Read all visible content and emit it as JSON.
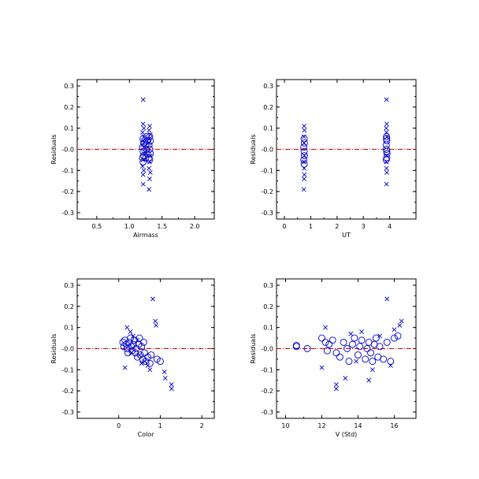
{
  "colors": {
    "points": "#0000cc",
    "zero_line": "#cc0000",
    "frame": "#000000"
  },
  "chart_data": [
    {
      "type": "scatter",
      "xlabel": "Airmass",
      "ylabel": "Residuals",
      "xlim": [
        0.2,
        2.3
      ],
      "ylim": [
        -0.33,
        0.33
      ],
      "xticks": [
        0.5,
        1.0,
        1.5,
        2.0
      ],
      "xtick_labels": [
        "0.5",
        "1.0",
        "1.5",
        "2.0"
      ],
      "yticks": [
        -0.3,
        -0.2,
        -0.1,
        0.0,
        0.1,
        0.2,
        0.3
      ],
      "ytick_labels": [
        "-0.3",
        "-0.2",
        "-0.1",
        "-0.0",
        "0.1",
        "0.2",
        "0.3"
      ],
      "reference_line_y": 0.0,
      "series": [
        {
          "marker": "x",
          "points": [
            [
              1.21,
              0.235
            ],
            [
              1.21,
              0.12
            ],
            [
              1.22,
              0.1
            ],
            [
              1.2,
              0.08
            ],
            [
              1.22,
              0.06
            ],
            [
              1.21,
              0.04
            ],
            [
              1.2,
              0.02
            ],
            [
              1.22,
              -0.02
            ],
            [
              1.21,
              -0.05
            ],
            [
              1.2,
              -0.08
            ],
            [
              1.22,
              -0.1
            ],
            [
              1.21,
              -0.12
            ],
            [
              1.21,
              -0.165
            ],
            [
              1.31,
              0.11
            ],
            [
              1.3,
              0.09
            ],
            [
              1.32,
              0.07
            ],
            [
              1.31,
              0.05
            ],
            [
              1.3,
              0.03
            ],
            [
              1.32,
              -0.03
            ],
            [
              1.31,
              -0.06
            ],
            [
              1.3,
              -0.09
            ],
            [
              1.32,
              -0.11
            ],
            [
              1.31,
              -0.14
            ],
            [
              1.3,
              -0.19
            ]
          ]
        },
        {
          "marker": "o",
          "points": [
            [
              1.21,
              0.05
            ],
            [
              1.22,
              0.03
            ],
            [
              1.2,
              0.01
            ],
            [
              1.21,
              -0.01
            ],
            [
              1.22,
              -0.03
            ],
            [
              1.2,
              -0.04
            ],
            [
              1.21,
              -0.06
            ],
            [
              1.26,
              0.06
            ],
            [
              1.27,
              0.04
            ],
            [
              1.25,
              0.02
            ],
            [
              1.26,
              0.0
            ],
            [
              1.27,
              -0.02
            ],
            [
              1.25,
              -0.04
            ],
            [
              1.31,
              0.06
            ],
            [
              1.32,
              0.04
            ],
            [
              1.3,
              0.02
            ],
            [
              1.31,
              0.0
            ],
            [
              1.32,
              -0.02
            ],
            [
              1.3,
              -0.04
            ],
            [
              1.31,
              -0.05
            ]
          ]
        }
      ]
    },
    {
      "type": "scatter",
      "xlabel": "UT",
      "ylabel": "Residuals",
      "xlim": [
        -0.3,
        5.0
      ],
      "ylim": [
        -0.33,
        0.33
      ],
      "xticks": [
        0,
        1,
        2,
        3,
        4
      ],
      "xtick_labels": [
        "0",
        "1",
        "2",
        "3",
        "4"
      ],
      "yticks": [
        -0.3,
        -0.2,
        -0.1,
        0.0,
        0.1,
        0.2,
        0.3
      ],
      "ytick_labels": [
        "-0.3",
        "-0.2",
        "-0.1",
        "-0.0",
        "0.1",
        "0.2",
        "0.3"
      ],
      "reference_line_y": 0.0,
      "series": [
        {
          "marker": "x",
          "points": [
            [
              0.75,
              0.11
            ],
            [
              0.76,
              0.09
            ],
            [
              0.74,
              0.06
            ],
            [
              0.75,
              0.03
            ],
            [
              0.76,
              -0.03
            ],
            [
              0.74,
              -0.06
            ],
            [
              0.75,
              -0.09
            ],
            [
              0.76,
              -0.12
            ],
            [
              0.75,
              -0.14
            ],
            [
              0.74,
              -0.19
            ],
            [
              3.88,
              0.235
            ],
            [
              3.89,
              0.12
            ],
            [
              3.87,
              0.1
            ],
            [
              3.88,
              0.08
            ],
            [
              3.9,
              0.06
            ],
            [
              3.89,
              -0.03
            ],
            [
              3.87,
              -0.06
            ],
            [
              3.88,
              -0.09
            ],
            [
              3.89,
              -0.11
            ],
            [
              3.88,
              -0.165
            ]
          ]
        },
        {
          "marker": "o",
          "points": [
            [
              0.75,
              0.05
            ],
            [
              0.76,
              0.03
            ],
            [
              0.74,
              0.01
            ],
            [
              0.75,
              -0.01
            ],
            [
              0.76,
              -0.03
            ],
            [
              0.74,
              -0.05
            ],
            [
              0.75,
              -0.07
            ],
            [
              3.88,
              0.06
            ],
            [
              3.89,
              0.04
            ],
            [
              3.87,
              0.02
            ],
            [
              3.88,
              0.0
            ],
            [
              3.9,
              -0.02
            ],
            [
              3.89,
              -0.04
            ],
            [
              3.87,
              -0.05
            ],
            [
              3.88,
              0.05
            ],
            [
              3.89,
              -0.01
            ]
          ]
        }
      ]
    },
    {
      "type": "scatter",
      "xlabel": "Color",
      "ylabel": "Residuals",
      "xlim": [
        -1.0,
        2.3
      ],
      "ylim": [
        -0.33,
        0.33
      ],
      "xticks": [
        0,
        1,
        2
      ],
      "xtick_labels": [
        "0",
        "1",
        "2"
      ],
      "yticks": [
        -0.3,
        -0.2,
        -0.1,
        0.0,
        0.1,
        0.2,
        0.3
      ],
      "ytick_labels": [
        "-0.3",
        "-0.2",
        "-0.1",
        "-0.0",
        "0.1",
        "0.2",
        "0.3"
      ],
      "reference_line_y": 0.0,
      "series": [
        {
          "marker": "x",
          "points": [
            [
              0.82,
              0.235
            ],
            [
              0.88,
              0.13
            ],
            [
              0.9,
              0.11
            ],
            [
              1.1,
              -0.11
            ],
            [
              1.12,
              -0.14
            ],
            [
              1.27,
              -0.17
            ],
            [
              1.27,
              -0.19
            ],
            [
              0.2,
              0.1
            ],
            [
              0.28,
              0.08
            ],
            [
              0.15,
              -0.09
            ],
            [
              0.35,
              0.06
            ],
            [
              0.55,
              -0.07
            ],
            [
              0.62,
              -0.06
            ],
            [
              0.7,
              -0.08
            ],
            [
              0.75,
              -0.1
            ],
            [
              0.45,
              0.04
            ],
            [
              0.5,
              -0.03
            ],
            [
              0.3,
              -0.02
            ]
          ]
        },
        {
          "marker": "o",
          "points": [
            [
              0.1,
              0.03
            ],
            [
              0.12,
              0.01
            ],
            [
              0.15,
              0.04
            ],
            [
              0.18,
              0.02
            ],
            [
              0.2,
              0.0
            ],
            [
              0.22,
              -0.02
            ],
            [
              0.25,
              0.03
            ],
            [
              0.28,
              0.05
            ],
            [
              0.3,
              0.01
            ],
            [
              0.32,
              -0.01
            ],
            [
              0.35,
              0.02
            ],
            [
              0.38,
              0.04
            ],
            [
              0.4,
              -0.02
            ],
            [
              0.42,
              0.0
            ],
            [
              0.45,
              -0.04
            ],
            [
              0.48,
              0.02
            ],
            [
              0.5,
              0.05
            ],
            [
              0.52,
              -0.03
            ],
            [
              0.55,
              0.01
            ],
            [
              0.58,
              -0.05
            ],
            [
              0.6,
              0.03
            ],
            [
              0.62,
              -0.02
            ],
            [
              0.65,
              -0.06
            ],
            [
              0.7,
              -0.04
            ],
            [
              0.75,
              -0.07
            ],
            [
              0.78,
              -0.03
            ],
            [
              0.92,
              -0.05
            ],
            [
              1.0,
              -0.06
            ]
          ]
        }
      ]
    },
    {
      "type": "scatter",
      "xlabel": "V (Std)",
      "ylabel": "Residuals",
      "xlim": [
        9.5,
        17.2
      ],
      "ylim": [
        -0.33,
        0.33
      ],
      "xticks": [
        10,
        12,
        14,
        16
      ],
      "xtick_labels": [
        "10",
        "12",
        "14",
        "16"
      ],
      "yticks": [
        -0.3,
        -0.2,
        -0.1,
        0.0,
        0.1,
        0.2,
        0.3
      ],
      "ytick_labels": [
        "-0.3",
        "-0.2",
        "-0.1",
        "-0.0",
        "0.1",
        "0.2",
        "0.3"
      ],
      "reference_line_y": 0.0,
      "series": [
        {
          "marker": "x",
          "points": [
            [
              15.6,
              0.235
            ],
            [
              16.4,
              0.13
            ],
            [
              16.3,
              0.11
            ],
            [
              12.2,
              0.1
            ],
            [
              12.8,
              -0.17
            ],
            [
              12.8,
              -0.19
            ],
            [
              13.3,
              -0.14
            ],
            [
              14.6,
              -0.15
            ],
            [
              12.0,
              -0.09
            ],
            [
              13.6,
              0.07
            ],
            [
              14.2,
              0.08
            ],
            [
              15.2,
              0.06
            ],
            [
              16.0,
              0.09
            ],
            [
              15.8,
              -0.08
            ],
            [
              13.9,
              -0.06
            ],
            [
              14.8,
              -0.1
            ]
          ]
        },
        {
          "marker": "o",
          "points": [
            [
              10.6,
              0.01
            ],
            [
              10.6,
              0.015
            ],
            [
              11.2,
              0.0
            ],
            [
              12.0,
              0.05
            ],
            [
              12.2,
              0.03
            ],
            [
              12.4,
              0.02
            ],
            [
              12.3,
              -0.01
            ],
            [
              12.6,
              0.04
            ],
            [
              12.8,
              -0.02
            ],
            [
              13.0,
              -0.04
            ],
            [
              13.2,
              0.03
            ],
            [
              13.4,
              0.0
            ],
            [
              13.5,
              -0.06
            ],
            [
              13.7,
              0.02
            ],
            [
              13.8,
              0.05
            ],
            [
              14.0,
              -0.03
            ],
            [
              14.1,
              0.01
            ],
            [
              14.2,
              0.04
            ],
            [
              14.4,
              -0.05
            ],
            [
              14.5,
              0.0
            ],
            [
              14.6,
              0.03
            ],
            [
              14.7,
              -0.02
            ],
            [
              14.8,
              -0.06
            ],
            [
              14.9,
              0.02
            ],
            [
              15.0,
              0.05
            ],
            [
              15.1,
              -0.04
            ],
            [
              15.2,
              0.01
            ],
            [
              15.4,
              -0.05
            ],
            [
              15.6,
              0.03
            ],
            [
              15.8,
              -0.06
            ],
            [
              16.0,
              0.05
            ],
            [
              16.2,
              0.06
            ]
          ]
        }
      ]
    }
  ]
}
